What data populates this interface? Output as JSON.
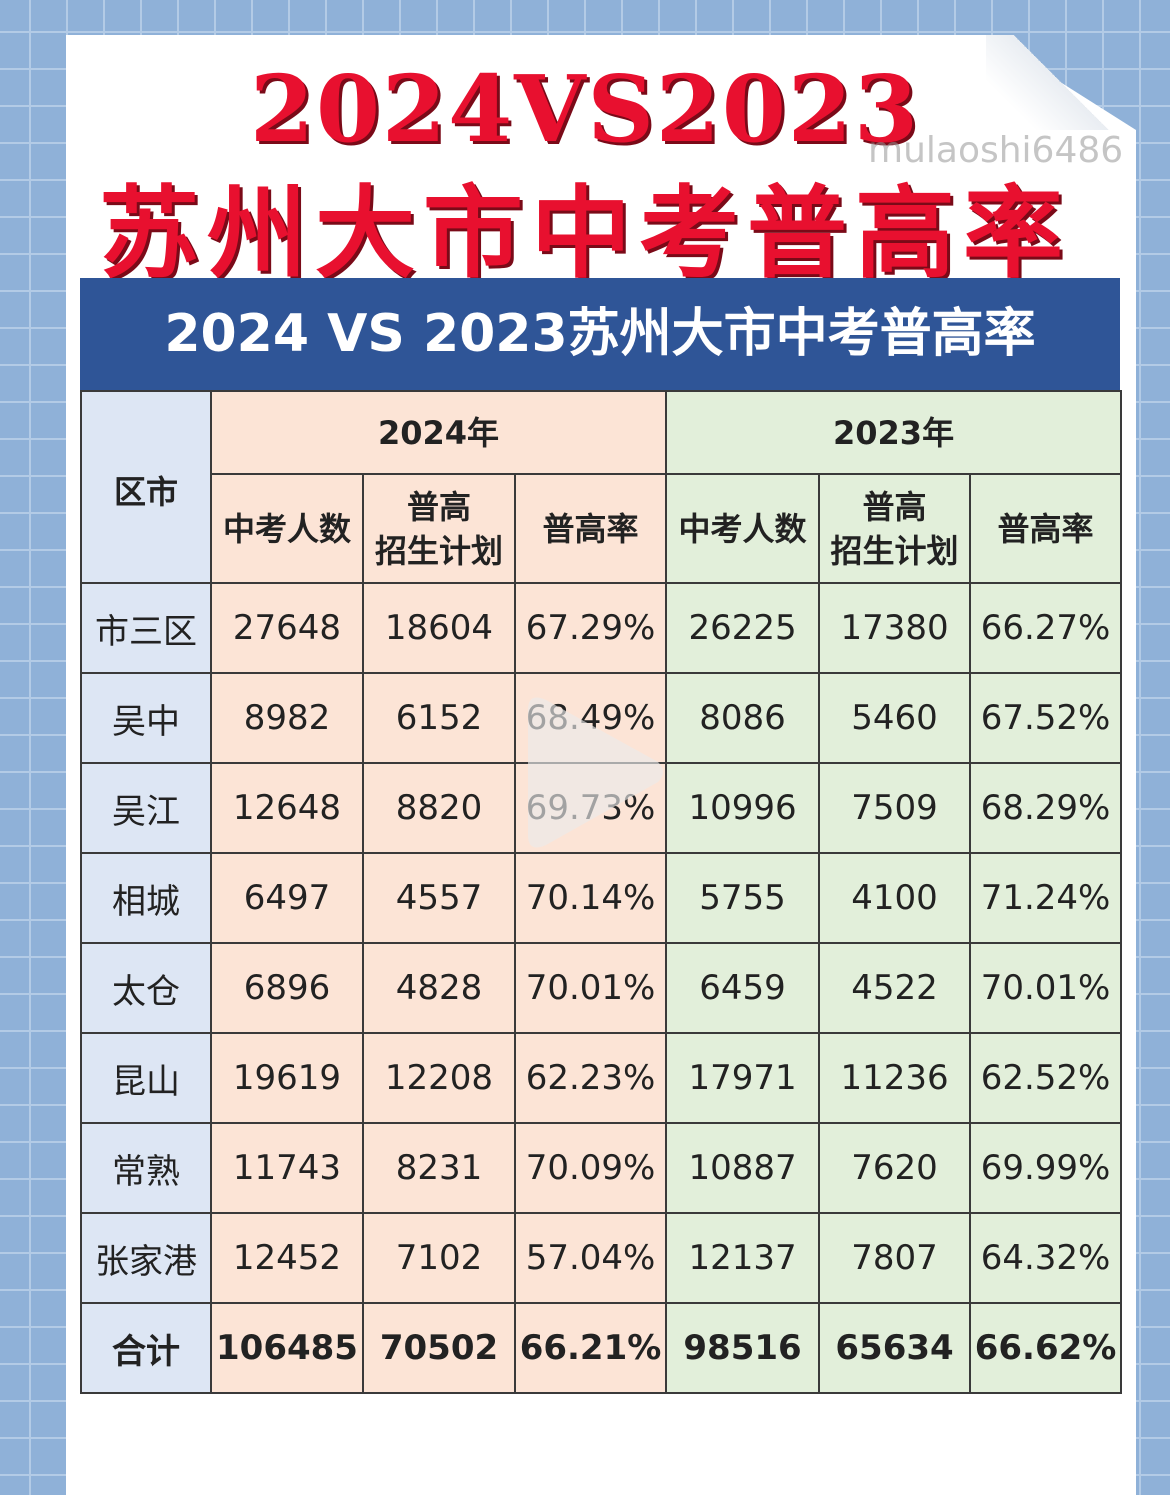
{
  "title_line1": "2024VS2023",
  "title_line2": "苏州大市中考普高率",
  "watermark": "mulaoshi6486",
  "banner": "2024 VS 2023苏州大市中考普高率",
  "headers": {
    "district": "区市",
    "year_2024": "2024年",
    "year_2023": "2023年",
    "cols": [
      "中考人数",
      "普高\n招生计划",
      "普高率",
      "中考人数",
      "普高\n招生计划",
      "普高率"
    ]
  },
  "rows": [
    {
      "district": "市三区",
      "v": [
        "27648",
        "18604",
        "67.29%",
        "26225",
        "17380",
        "66.27%"
      ]
    },
    {
      "district": "吴中",
      "v": [
        "8982",
        "6152",
        "68.49%",
        "8086",
        "5460",
        "67.52%"
      ]
    },
    {
      "district": "吴江",
      "v": [
        "12648",
        "8820",
        "69.73%",
        "10996",
        "7509",
        "68.29%"
      ]
    },
    {
      "district": "相城",
      "v": [
        "6497",
        "4557",
        "70.14%",
        "5755",
        "4100",
        "71.24%"
      ]
    },
    {
      "district": "太仓",
      "v": [
        "6896",
        "4828",
        "70.01%",
        "6459",
        "4522",
        "70.01%"
      ]
    },
    {
      "district": "昆山",
      "v": [
        "19619",
        "12208",
        "62.23%",
        "17971",
        "11236",
        "62.52%"
      ]
    },
    {
      "district": "常熟",
      "v": [
        "11743",
        "8231",
        "70.09%",
        "10887",
        "7620",
        "69.99%"
      ]
    },
    {
      "district": "张家港",
      "v": [
        "12452",
        "7102",
        "57.04%",
        "12137",
        "7807",
        "64.32%"
      ]
    }
  ],
  "total": {
    "district": "合计",
    "v": [
      "106485",
      "70502",
      "66.21%",
      "98516",
      "65634",
      "66.62%"
    ]
  },
  "colors": {
    "title_red": "#e8102f",
    "banner_blue": "#2f5597",
    "col_2024": "#fce4d6",
    "col_2023": "#e2efda",
    "col_district": "#dde6f4"
  }
}
